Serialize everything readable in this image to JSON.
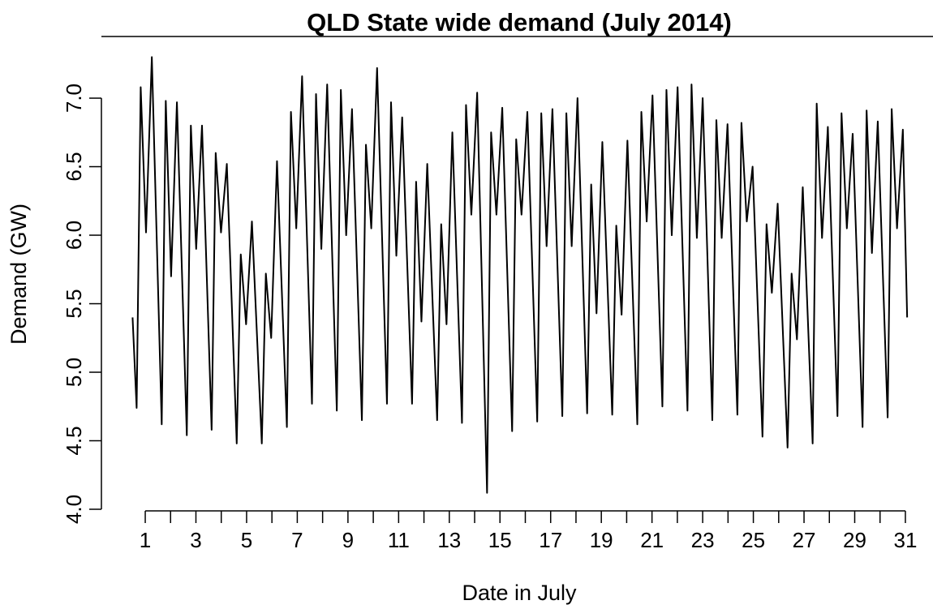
{
  "chart_data": {
    "type": "line",
    "title": "QLD State wide demand (July 2014)",
    "x_label": "Date in July",
    "y_label": "Demand (GW)",
    "xlim": [
      -0.73,
      32.09
    ],
    "ylim": [
      4.0,
      7.45
    ],
    "xticks": [
      1,
      3,
      5,
      7,
      9,
      11,
      13,
      15,
      17,
      19,
      21,
      23,
      25,
      27,
      29,
      31
    ],
    "xminor_ticks": [
      2,
      4,
      6,
      8,
      10,
      12,
      14,
      16,
      18,
      20,
      22,
      24,
      26,
      28,
      30
    ],
    "yticks": [
      {
        "value": 4.0,
        "label": "4.0"
      },
      4.5,
      {
        "value": 5.0,
        "label": "5.0"
      },
      5.5,
      {
        "value": 6.0,
        "label": "6.0"
      },
      6.5,
      {
        "value": 7.0,
        "label": "7.0"
      }
    ],
    "series": [
      {
        "name": "Demand",
        "color": "#000000",
        "x": [
          0.5,
          0.66,
          0.82,
          1.03,
          1.26,
          1.65,
          1.81,
          2.02,
          2.25,
          2.64,
          2.8,
          3.01,
          3.24,
          3.62,
          3.78,
          3.99,
          4.22,
          4.61,
          4.77,
          4.98,
          5.21,
          5.6,
          5.76,
          5.97,
          6.2,
          6.59,
          6.75,
          6.96,
          7.19,
          7.58,
          7.74,
          7.95,
          8.18,
          8.56,
          8.72,
          8.93,
          9.16,
          9.55,
          9.71,
          9.92,
          10.15,
          10.54,
          10.7,
          10.91,
          11.14,
          11.53,
          11.69,
          11.9,
          12.13,
          12.52,
          12.68,
          12.89,
          13.12,
          13.5,
          13.66,
          13.87,
          14.1,
          14.49,
          14.65,
          14.86,
          15.09,
          15.48,
          15.64,
          15.85,
          16.08,
          16.47,
          16.63,
          16.84,
          17.07,
          17.46,
          17.62,
          17.83,
          18.06,
          18.44,
          18.6,
          18.81,
          19.04,
          19.43,
          19.59,
          19.8,
          20.03,
          20.42,
          20.58,
          20.79,
          21.02,
          21.41,
          21.57,
          21.78,
          22.01,
          22.4,
          22.56,
          22.77,
          23.0,
          23.38,
          23.54,
          23.75,
          23.98,
          24.37,
          24.53,
          24.74,
          24.97,
          25.36,
          25.52,
          25.73,
          25.96,
          26.35,
          26.51,
          26.72,
          26.95,
          27.34,
          27.5,
          27.71,
          27.94,
          28.32,
          28.48,
          28.69,
          28.92,
          29.31,
          29.47,
          29.68,
          29.91,
          30.3,
          30.46,
          30.67,
          30.9,
          31.07
        ],
        "values": [
          5.4,
          4.74,
          7.08,
          6.02,
          7.3,
          4.62,
          6.98,
          5.7,
          6.97,
          4.54,
          6.8,
          5.9,
          6.8,
          4.58,
          6.6,
          6.02,
          6.52,
          4.48,
          5.86,
          5.35,
          6.1,
          4.48,
          5.72,
          5.25,
          6.54,
          4.6,
          6.9,
          6.05,
          7.16,
          4.77,
          7.03,
          5.9,
          7.1,
          4.72,
          7.06,
          6.0,
          6.92,
          4.65,
          6.66,
          6.05,
          7.22,
          4.77,
          6.97,
          5.85,
          6.86,
          4.77,
          6.39,
          5.37,
          6.52,
          4.65,
          6.08,
          5.35,
          6.75,
          4.63,
          6.95,
          6.15,
          7.04,
          4.12,
          6.75,
          6.15,
          6.93,
          4.57,
          6.7,
          6.15,
          6.9,
          4.64,
          6.89,
          5.92,
          6.92,
          4.68,
          6.89,
          5.92,
          7.0,
          4.7,
          6.37,
          5.43,
          6.68,
          4.69,
          6.07,
          5.42,
          6.69,
          4.62,
          6.9,
          6.1,
          7.02,
          4.75,
          7.06,
          6.0,
          7.08,
          4.72,
          7.1,
          5.98,
          7.0,
          4.65,
          6.84,
          5.98,
          6.81,
          4.69,
          6.82,
          6.1,
          6.5,
          4.53,
          6.08,
          5.58,
          6.23,
          4.45,
          5.72,
          5.24,
          6.35,
          4.48,
          6.96,
          5.98,
          6.79,
          4.68,
          6.89,
          6.05,
          6.74,
          4.6,
          6.91,
          5.87,
          6.83,
          4.67,
          6.92,
          6.05,
          6.77,
          5.4
        ]
      }
    ]
  }
}
